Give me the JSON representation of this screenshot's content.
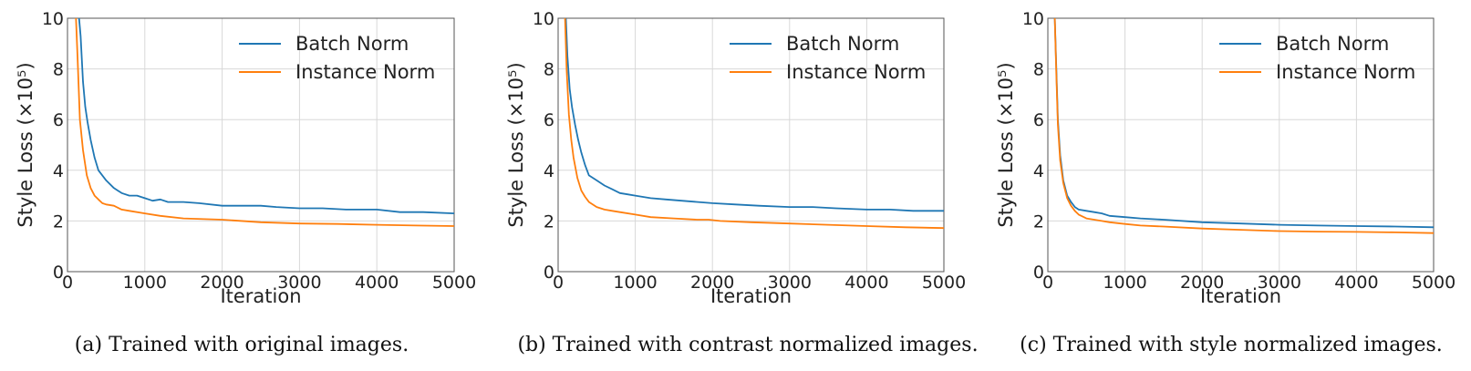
{
  "colors": {
    "batch": "#1f77b4",
    "instance": "#ff7f0e"
  },
  "chart_data": [
    {
      "type": "line",
      "caption": "(a)  Trained with original images.",
      "xlabel": "Iteration",
      "ylabel": "Style Loss (×10⁵)",
      "xlim": [
        0,
        5000
      ],
      "ylim": [
        0,
        10
      ],
      "xticks": [
        0,
        1000,
        2000,
        3000,
        4000,
        5000
      ],
      "yticks": [
        0,
        2,
        4,
        6,
        8,
        10
      ],
      "grid": true,
      "legend_position": "top-right",
      "series": [
        {
          "name": "Batch Norm",
          "color": "#1f77b4",
          "x": [
            150,
            170,
            200,
            230,
            260,
            300,
            350,
            400,
            450,
            500,
            600,
            700,
            800,
            900,
            1000,
            1100,
            1200,
            1300,
            1400,
            1500,
            1700,
            2000,
            2300,
            2500,
            2700,
            3000,
            3300,
            3600,
            4000,
            4300,
            4600,
            5000
          ],
          "y": [
            10,
            9.3,
            7.5,
            6.5,
            5.9,
            5.2,
            4.5,
            4.0,
            3.8,
            3.6,
            3.3,
            3.1,
            3.0,
            3.0,
            2.9,
            2.8,
            2.85,
            2.75,
            2.75,
            2.75,
            2.7,
            2.6,
            2.6,
            2.6,
            2.55,
            2.5,
            2.5,
            2.45,
            2.45,
            2.35,
            2.35,
            2.3
          ]
        },
        {
          "name": "Instance Norm",
          "color": "#ff7f0e",
          "x": [
            110,
            130,
            160,
            200,
            250,
            300,
            350,
            400,
            450,
            500,
            600,
            700,
            800,
            1000,
            1200,
            1500,
            2000,
            2500,
            3000,
            3500,
            4000,
            4500,
            5000
          ],
          "y": [
            10,
            8.5,
            6.0,
            4.8,
            3.8,
            3.3,
            3.0,
            2.85,
            2.7,
            2.65,
            2.6,
            2.45,
            2.4,
            2.3,
            2.2,
            2.1,
            2.05,
            1.95,
            1.9,
            1.88,
            1.85,
            1.82,
            1.8
          ]
        }
      ]
    },
    {
      "type": "line",
      "caption": "(b)  Trained with contrast normalized images.",
      "xlabel": "Iteration",
      "ylabel": "Style Loss (×10⁵)",
      "xlim": [
        0,
        5000
      ],
      "ylim": [
        0,
        10
      ],
      "xticks": [
        0,
        1000,
        2000,
        3000,
        4000,
        5000
      ],
      "yticks": [
        0,
        2,
        4,
        6,
        8,
        10
      ],
      "grid": true,
      "legend_position": "top-right",
      "series": [
        {
          "name": "Batch Norm",
          "color": "#1f77b4",
          "x": [
            100,
            120,
            150,
            180,
            220,
            260,
            300,
            350,
            400,
            500,
            600,
            700,
            800,
            900,
            1000,
            1200,
            1400,
            1600,
            2000,
            2300,
            2600,
            3000,
            3300,
            3600,
            4000,
            4300,
            4600,
            5000
          ],
          "y": [
            10,
            8.5,
            7.2,
            6.5,
            5.8,
            5.2,
            4.7,
            4.2,
            3.8,
            3.6,
            3.4,
            3.25,
            3.1,
            3.05,
            3.0,
            2.9,
            2.85,
            2.8,
            2.7,
            2.65,
            2.6,
            2.55,
            2.55,
            2.5,
            2.45,
            2.45,
            2.4,
            2.4
          ]
        },
        {
          "name": "Instance Norm",
          "color": "#ff7f0e",
          "x": [
            90,
            110,
            140,
            170,
            200,
            250,
            300,
            350,
            400,
            500,
            600,
            700,
            800,
            1000,
            1200,
            1500,
            1800,
            1950,
            2100,
            2500,
            3000,
            3500,
            4000,
            4500,
            5000
          ],
          "y": [
            10,
            8.0,
            6.2,
            5.2,
            4.5,
            3.7,
            3.2,
            2.95,
            2.75,
            2.55,
            2.45,
            2.4,
            2.35,
            2.25,
            2.15,
            2.1,
            2.05,
            2.05,
            2.0,
            1.95,
            1.9,
            1.85,
            1.8,
            1.75,
            1.72
          ]
        }
      ]
    },
    {
      "type": "line",
      "caption": "(c)  Trained with style normalized images.",
      "xlabel": "Iteration",
      "ylabel": "Style Loss (×10⁵)",
      "xlim": [
        0,
        5000
      ],
      "ylim": [
        0,
        10
      ],
      "xticks": [
        0,
        1000,
        2000,
        3000,
        4000,
        5000
      ],
      "yticks": [
        0,
        2,
        4,
        6,
        8,
        10
      ],
      "grid": true,
      "legend_position": "top-right",
      "series": [
        {
          "name": "Batch Norm",
          "color": "#1f77b4",
          "x": [
            90,
            110,
            130,
            160,
            200,
            250,
            300,
            350,
            400,
            500,
            600,
            700,
            800,
            1000,
            1200,
            1500,
            2000,
            2500,
            3000,
            3500,
            4000,
            4500,
            5000
          ],
          "y": [
            10,
            8.0,
            6.0,
            4.6,
            3.6,
            3.0,
            2.75,
            2.55,
            2.45,
            2.4,
            2.35,
            2.3,
            2.2,
            2.15,
            2.1,
            2.05,
            1.95,
            1.9,
            1.85,
            1.82,
            1.8,
            1.78,
            1.75
          ]
        },
        {
          "name": "Instance Norm",
          "color": "#ff7f0e",
          "x": [
            90,
            110,
            130,
            160,
            200,
            250,
            300,
            350,
            400,
            500,
            600,
            700,
            800,
            1000,
            1200,
            1500,
            2000,
            2500,
            3000,
            3500,
            4000,
            4500,
            5000
          ],
          "y": [
            10,
            7.8,
            5.8,
            4.4,
            3.5,
            2.9,
            2.6,
            2.4,
            2.25,
            2.1,
            2.05,
            2.0,
            1.95,
            1.88,
            1.82,
            1.78,
            1.7,
            1.65,
            1.6,
            1.58,
            1.57,
            1.55,
            1.52
          ]
        }
      ]
    }
  ]
}
